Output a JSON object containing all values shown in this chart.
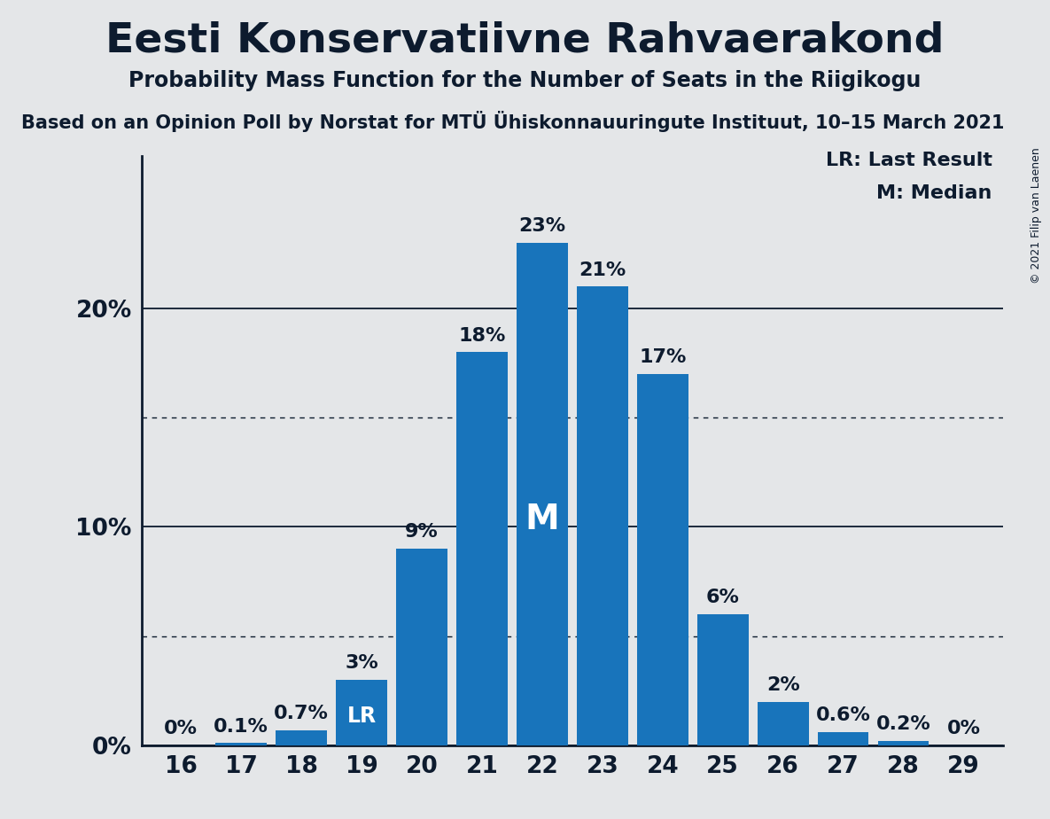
{
  "title": "Eesti Konservatiivne Rahvaerakond",
  "subtitle": "Probability Mass Function for the Number of Seats in the Riigikogu",
  "source": "Based on an Opinion Poll by Norstat for MTÜ Ühiskonnauuringute Instituut, 10–15 March 2021",
  "copyright": "© 2021 Filip van Laenen",
  "seats": [
    16,
    17,
    18,
    19,
    20,
    21,
    22,
    23,
    24,
    25,
    26,
    27,
    28,
    29
  ],
  "probabilities": [
    0.0,
    0.1,
    0.7,
    3.0,
    9.0,
    18.0,
    23.0,
    21.0,
    17.0,
    6.0,
    2.0,
    0.6,
    0.2,
    0.0
  ],
  "bar_color": "#1874bb",
  "background_color": "#e4e6e8",
  "text_color": "#0d1b2e",
  "lr_seat": 19,
  "median_seat": 22,
  "ylim": [
    0,
    27
  ],
  "yticks": [
    0,
    10,
    20
  ],
  "dotted_lines": [
    5,
    15
  ],
  "legend_lr": "LR: Last Result",
  "legend_m": "M: Median",
  "title_fontsize": 34,
  "subtitle_fontsize": 17,
  "source_fontsize": 15,
  "tick_fontsize": 19,
  "bar_label_fontsize": 16,
  "legend_fontsize": 16
}
